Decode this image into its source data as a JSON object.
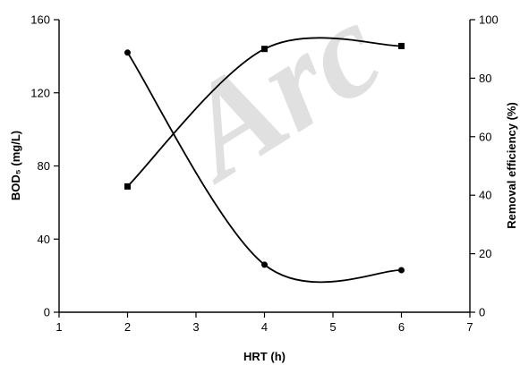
{
  "watermark": {
    "text": "Arc"
  },
  "chart_data": {
    "type": "line",
    "title": "",
    "xlabel": "HRT (h)",
    "ylabel": "BOD₅ (mg/L)",
    "y2label": "Removal efficiency (%)",
    "xlim": [
      1,
      7
    ],
    "ylim": [
      0,
      160
    ],
    "y2lim": [
      0,
      100
    ],
    "xticks": [
      1,
      2,
      3,
      4,
      5,
      6,
      7
    ],
    "yticks": [
      0,
      40,
      80,
      120,
      160
    ],
    "y2ticks": [
      0,
      20,
      40,
      60,
      80,
      100
    ],
    "grid": false,
    "legend": "none",
    "series": [
      {
        "axis": "left",
        "marker": "circle",
        "color": "#000000",
        "x": [
          2,
          4,
          6
        ],
        "y": [
          142,
          26,
          23
        ]
      },
      {
        "axis": "right",
        "marker": "square",
        "color": "#000000",
        "x": [
          2,
          4,
          6
        ],
        "y": [
          43,
          90,
          91
        ]
      }
    ]
  }
}
